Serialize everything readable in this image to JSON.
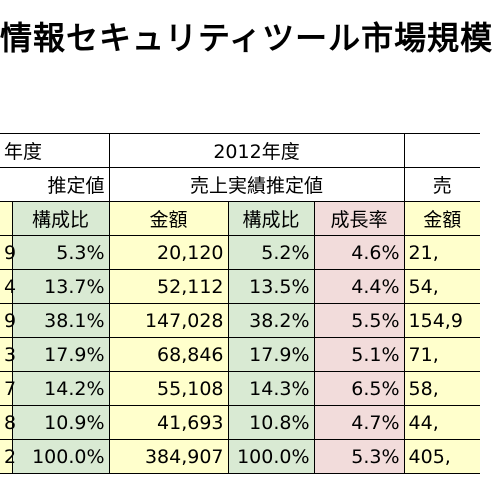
{
  "title": "情報セキュリティツール市場規模",
  "headers": {
    "prev_year": "年度",
    "prev_estimate": "推定値",
    "year_2012": "2012年度",
    "estimate_2012": "売上実績推定値",
    "next_estimate": "売",
    "col_ratio": "構成比",
    "col_amount": "金額",
    "col_ratio_2012": "構成比",
    "col_growth": "成長率",
    "col_amount_next": "金額"
  },
  "rows": [
    {
      "prev_amount": "9",
      "prev_ratio": "5.3%",
      "amount": "20,120",
      "ratio": "5.2%",
      "growth": "4.6%",
      "next_amount": "21,"
    },
    {
      "prev_amount": "4",
      "prev_ratio": "13.7%",
      "amount": "52,112",
      "ratio": "13.5%",
      "growth": "4.4%",
      "next_amount": "54,"
    },
    {
      "prev_amount": "9",
      "prev_ratio": "38.1%",
      "amount": "147,028",
      "ratio": "38.2%",
      "growth": "5.5%",
      "next_amount": "154,9"
    },
    {
      "prev_amount": "3",
      "prev_ratio": "17.9%",
      "amount": "68,846",
      "ratio": "17.9%",
      "growth": "5.1%",
      "next_amount": "71,"
    },
    {
      "prev_amount": "7",
      "prev_ratio": "14.2%",
      "amount": "55,108",
      "ratio": "14.3%",
      "growth": "6.5%",
      "next_amount": "58,"
    },
    {
      "prev_amount": "8",
      "prev_ratio": "10.9%",
      "amount": "41,693",
      "ratio": "10.8%",
      "growth": "4.7%",
      "next_amount": "44,"
    },
    {
      "prev_amount": "2",
      "prev_ratio": "100.0%",
      "amount": "384,907",
      "ratio": "100.0%",
      "growth": "5.3%",
      "next_amount": "405,"
    }
  ]
}
